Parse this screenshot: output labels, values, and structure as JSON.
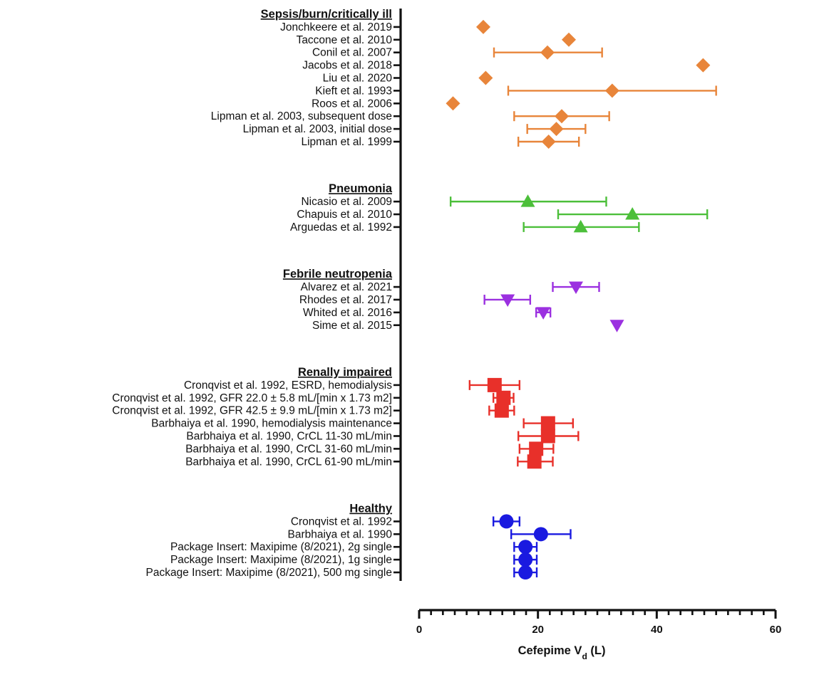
{
  "chart_data": {
    "type": "forest",
    "xlabel": {
      "main": "Cefepime V",
      "subscript": "d",
      "unit": " (L)"
    },
    "xlim": [
      0,
      60
    ],
    "xticks": [
      0,
      20,
      40,
      60
    ],
    "minor_tick_step": 2,
    "grid": false,
    "groups": [
      {
        "name": "Sepsis/burn/critically ill",
        "color": "#E8853A",
        "marker": "diamond",
        "rows": [
          {
            "label": "Jonchkeere et al. 2019",
            "value": 10.8,
            "lower": null,
            "upper": null
          },
          {
            "label": "Taccone et al. 2010",
            "value": 25.2,
            "lower": null,
            "upper": null
          },
          {
            "label": "Conil et al. 2007",
            "value": 21.6,
            "lower": 12.6,
            "upper": 30.8
          },
          {
            "label": "Jacobs et al. 2018",
            "value": 47.8,
            "lower": null,
            "upper": null
          },
          {
            "label": "Liu et al. 2020",
            "value": 11.2,
            "lower": null,
            "upper": null
          },
          {
            "label": "Kieft et al. 1993",
            "value": 32.5,
            "lower": 15.0,
            "upper": 50.0
          },
          {
            "label": "Roos et al. 2006",
            "value": 5.7,
            "lower": null,
            "upper": null
          },
          {
            "label": "Lipman et al. 2003, subsequent dose",
            "value": 24.0,
            "lower": 16.0,
            "upper": 32.0
          },
          {
            "label": "Lipman et al. 2003, initial dose",
            "value": 23.1,
            "lower": 18.2,
            "upper": 28.0
          },
          {
            "label": "Lipman et al. 1999",
            "value": 21.8,
            "lower": 16.7,
            "upper": 26.9
          }
        ]
      },
      {
        "name": "Pneumonia",
        "color": "#4CBF3A",
        "marker": "triangle-up",
        "rows": [
          {
            "label": "Nicasio et al. 2009",
            "value": 18.3,
            "lower": 5.3,
            "upper": 31.5
          },
          {
            "label": "Chapuis et al. 2010",
            "value": 35.9,
            "lower": 23.4,
            "upper": 48.5
          },
          {
            "label": "Arguedas et al. 1992",
            "value": 27.2,
            "lower": 17.6,
            "upper": 37.0
          }
        ]
      },
      {
        "name": "Febrile neutropenia",
        "color": "#9B30E0",
        "marker": "triangle-down",
        "rows": [
          {
            "label": "Alvarez et al. 2021",
            "value": 26.4,
            "lower": 22.5,
            "upper": 30.3
          },
          {
            "label": "Rhodes et al. 2017",
            "value": 14.9,
            "lower": 11.0,
            "upper": 18.7
          },
          {
            "label": "Whited et al. 2016",
            "value": 20.9,
            "lower": 19.7,
            "upper": 22.1
          },
          {
            "label": "Sime et al. 2015",
            "value": 33.3,
            "lower": null,
            "upper": null
          }
        ]
      },
      {
        "name": "Renally impaired",
        "color": "#E8302A",
        "marker": "square",
        "rows": [
          {
            "label": "Cronqvist et al. 1992, ESRD, hemodialysis",
            "value": 12.7,
            "lower": 8.5,
            "upper": 16.9
          },
          {
            "label": "Cronqvist et al. 1992, GFR 22.0 ± 5.8 mL/[min x 1.73 m2]",
            "value": 14.2,
            "lower": 12.5,
            "upper": 15.9
          },
          {
            "label": "Cronqvist et al. 1992, GFR 42.5 ± 9.9 mL/[min x 1.73 m2]",
            "value": 13.9,
            "lower": 11.8,
            "upper": 16.0
          },
          {
            "label": "Barbhaiya et al. 1990, hemodialysis maintenance",
            "value": 21.7,
            "lower": 17.6,
            "upper": 25.9
          },
          {
            "label": "Barbhaiya et al. 1990, CrCL 11-30 mL/min",
            "value": 21.7,
            "lower": 16.7,
            "upper": 26.8
          },
          {
            "label": "Barbhaiya et al. 1990, CrCL 31-60 mL/min",
            "value": 19.7,
            "lower": 16.9,
            "upper": 22.6
          },
          {
            "label": "Barbhaiya et al. 1990, CrCL 61-90 mL/min",
            "value": 19.4,
            "lower": 16.6,
            "upper": 22.5
          }
        ]
      },
      {
        "name": "Healthy",
        "color": "#1A1AE0",
        "marker": "circle",
        "rows": [
          {
            "label": "Cronqvist et al. 1992",
            "value": 14.7,
            "lower": 12.5,
            "upper": 16.9
          },
          {
            "label": "Barbhaiya et al. 1990",
            "value": 20.5,
            "lower": 15.5,
            "upper": 25.5
          },
          {
            "label": "Package Insert: Maxipime (8/2021), 2g single",
            "value": 17.9,
            "lower": 16.0,
            "upper": 19.8
          },
          {
            "label": "Package Insert: Maxipime (8/2021), 1g single",
            "value": 17.9,
            "lower": 16.0,
            "upper": 19.8
          },
          {
            "label": "Package Insert: Maxipime (8/2021), 500 mg single",
            "value": 17.9,
            "lower": 16.0,
            "upper": 19.8
          }
        ]
      }
    ]
  }
}
